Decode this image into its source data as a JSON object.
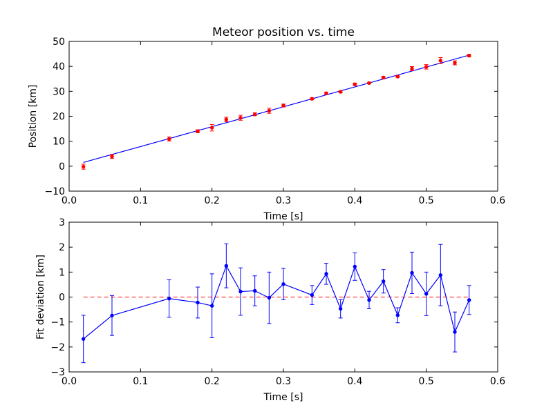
{
  "chart_data": [
    {
      "type": "scatter",
      "title": "Meteor position vs. time",
      "xlabel": "Time [s]",
      "ylabel": "Position [km]",
      "xlim": [
        0.0,
        0.6
      ],
      "ylim": [
        -10,
        50
      ],
      "xticks": [
        "0.0",
        "0.1",
        "0.2",
        "0.3",
        "0.4",
        "0.5",
        "0.6"
      ],
      "yticks": [
        "−10",
        "0",
        "10",
        "20",
        "30",
        "40",
        "50"
      ],
      "grid": false,
      "colors": {
        "points": "#ff0000",
        "fit": "#0000ff"
      },
      "series": [
        {
          "kind": "points-with-errorbars",
          "x": [
            0.02,
            0.06,
            0.14,
            0.18,
            0.2,
            0.22,
            0.24,
            0.26,
            0.28,
            0.3,
            0.34,
            0.36,
            0.38,
            0.4,
            0.42,
            0.44,
            0.46,
            0.48,
            0.5,
            0.52,
            0.54,
            0.56
          ],
          "y": [
            -0.2,
            3.9,
            10.9,
            14.0,
            15.4,
            18.7,
            19.4,
            20.8,
            22.2,
            24.3,
            27.0,
            29.2,
            29.8,
            32.8,
            33.3,
            35.5,
            35.9,
            39.1,
            39.8,
            42.3,
            41.4,
            44.3
          ],
          "yerr": [
            1.0,
            0.8,
            0.8,
            0.6,
            1.3,
            0.9,
            1.0,
            0.6,
            1.0,
            0.6,
            0.4,
            0.4,
            0.4,
            0.5,
            0.3,
            0.5,
            0.3,
            0.8,
            0.9,
            1.2,
            0.8,
            0.5
          ]
        },
        {
          "kind": "fit-line",
          "x": [
            0.02,
            0.56
          ],
          "y": [
            1.5,
            44.5
          ]
        }
      ]
    },
    {
      "type": "line",
      "title": "",
      "xlabel": "Time [s]",
      "ylabel": "Fit deviation [km]",
      "xlim": [
        0.0,
        0.6
      ],
      "ylim": [
        -3,
        3
      ],
      "xticks": [
        "0.0",
        "0.1",
        "0.2",
        "0.3",
        "0.4",
        "0.5",
        "0.6"
      ],
      "yticks": [
        "−3",
        "−2",
        "−1",
        "0",
        "1",
        "2",
        "3"
      ],
      "grid": false,
      "colors": {
        "series": "#0000ff",
        "zero_line": "#ff0000"
      },
      "series": [
        {
          "kind": "line-with-errorbars",
          "x": [
            0.02,
            0.06,
            0.14,
            0.18,
            0.2,
            0.22,
            0.24,
            0.26,
            0.28,
            0.3,
            0.34,
            0.36,
            0.38,
            0.4,
            0.42,
            0.44,
            0.46,
            0.48,
            0.5,
            0.52,
            0.54,
            0.56
          ],
          "y": [
            -1.68,
            -0.74,
            -0.06,
            -0.22,
            -0.35,
            1.25,
            0.22,
            0.25,
            -0.03,
            0.52,
            0.08,
            0.93,
            -0.47,
            1.22,
            -0.12,
            0.63,
            -0.73,
            0.97,
            0.13,
            0.88,
            -1.4,
            -0.12
          ],
          "yerr": [
            0.95,
            0.8,
            0.75,
            0.62,
            1.28,
            0.88,
            0.95,
            0.6,
            1.03,
            0.63,
            0.38,
            0.42,
            0.37,
            0.55,
            0.35,
            0.47,
            0.3,
            0.83,
            0.87,
            1.23,
            0.8,
            0.58
          ]
        },
        {
          "kind": "zero-line",
          "y": 0
        }
      ]
    }
  ]
}
